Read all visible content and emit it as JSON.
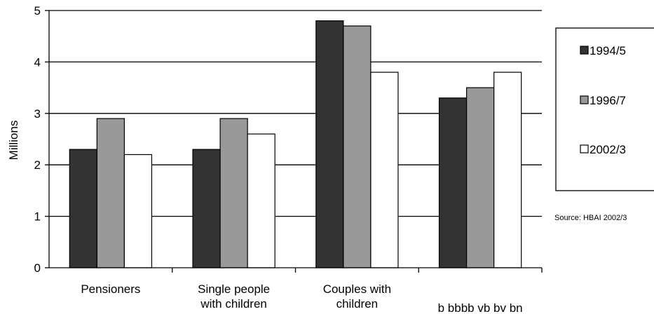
{
  "chart_data": {
    "type": "bar",
    "ylabel": "Millions",
    "ylim": [
      0,
      5
    ],
    "yticks": [
      "0",
      "1",
      "2",
      "3",
      "4",
      "5"
    ],
    "categories": [
      [
        "Pensioners"
      ],
      [
        "Single people",
        "with children"
      ],
      [
        "Couples with",
        "children"
      ],
      [
        "b bbbb vb bv bn"
      ]
    ],
    "series": [
      {
        "name": "1994/5",
        "color": "#333333",
        "values": [
          2.3,
          2.3,
          4.8,
          3.3
        ]
      },
      {
        "name": "1996/7",
        "color": "#999999",
        "values": [
          2.9,
          2.9,
          4.7,
          3.5
        ]
      },
      {
        "name": "2002/3",
        "color": "#ffffff",
        "values": [
          2.2,
          2.6,
          3.8,
          3.8
        ]
      }
    ],
    "grid": true,
    "legend": "right",
    "source": "Source: HBAI 2002/3"
  }
}
